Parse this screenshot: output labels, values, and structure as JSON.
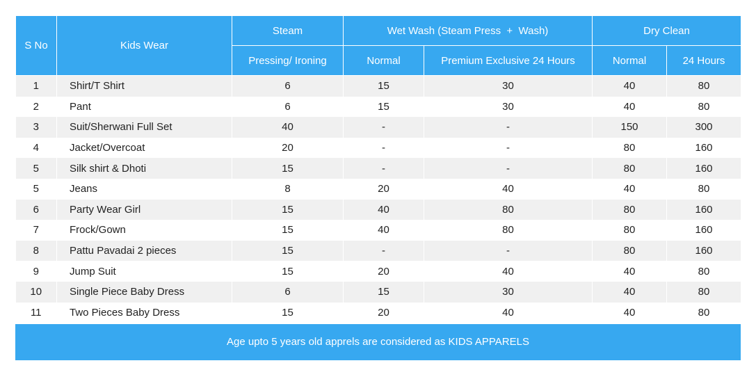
{
  "headers": {
    "sno": "S No",
    "kids_wear": "Kids Wear",
    "steam": "Steam",
    "wet_wash": "Wet Wash (Steam Press  +  Wash)",
    "dry_clean": "Dry Clean",
    "pressing": "Pressing/ Ironing",
    "ww_normal": "Normal",
    "ww_premium": "Premium Exclusive 24 Hours",
    "dc_normal": "Normal",
    "dc_24": "24 Hours"
  },
  "rows": [
    [
      "1",
      "Shirt/T Shirt",
      "6",
      "15",
      "30",
      "40",
      "80"
    ],
    [
      "2",
      "Pant",
      "6",
      "15",
      "30",
      "40",
      "80"
    ],
    [
      "3",
      "Suit/Sherwani Full Set",
      "40",
      "-",
      "-",
      "150",
      "300"
    ],
    [
      "4",
      "Jacket/Overcoat",
      "20",
      "-",
      "-",
      "80",
      "160"
    ],
    [
      "5",
      "Silk shirt & Dhoti",
      "15",
      "-",
      "-",
      "80",
      "160"
    ],
    [
      "5",
      "Jeans",
      "8",
      "20",
      "40",
      "40",
      "80"
    ],
    [
      "6",
      "Party Wear Girl",
      "15",
      "40",
      "80",
      "80",
      "160"
    ],
    [
      "7",
      "Frock/Gown",
      "15",
      "40",
      "80",
      "80",
      "160"
    ],
    [
      "8",
      "Pattu Pavadai 2 pieces",
      "15",
      "-",
      "-",
      "80",
      "160"
    ],
    [
      "9",
      "Jump Suit",
      "15",
      "20",
      "40",
      "40",
      "80"
    ],
    [
      "10",
      "Single Piece Baby Dress",
      "6",
      "15",
      "30",
      "40",
      "80"
    ],
    [
      "11",
      "Two Pieces Baby Dress",
      "15",
      "20",
      "40",
      "40",
      "80"
    ]
  ],
  "footer": "Age upto 5 years old apprels are considered as KIDS APPARELS",
  "colors": {
    "header": "#37a8f0",
    "stripe": "#f0f0f0"
  }
}
